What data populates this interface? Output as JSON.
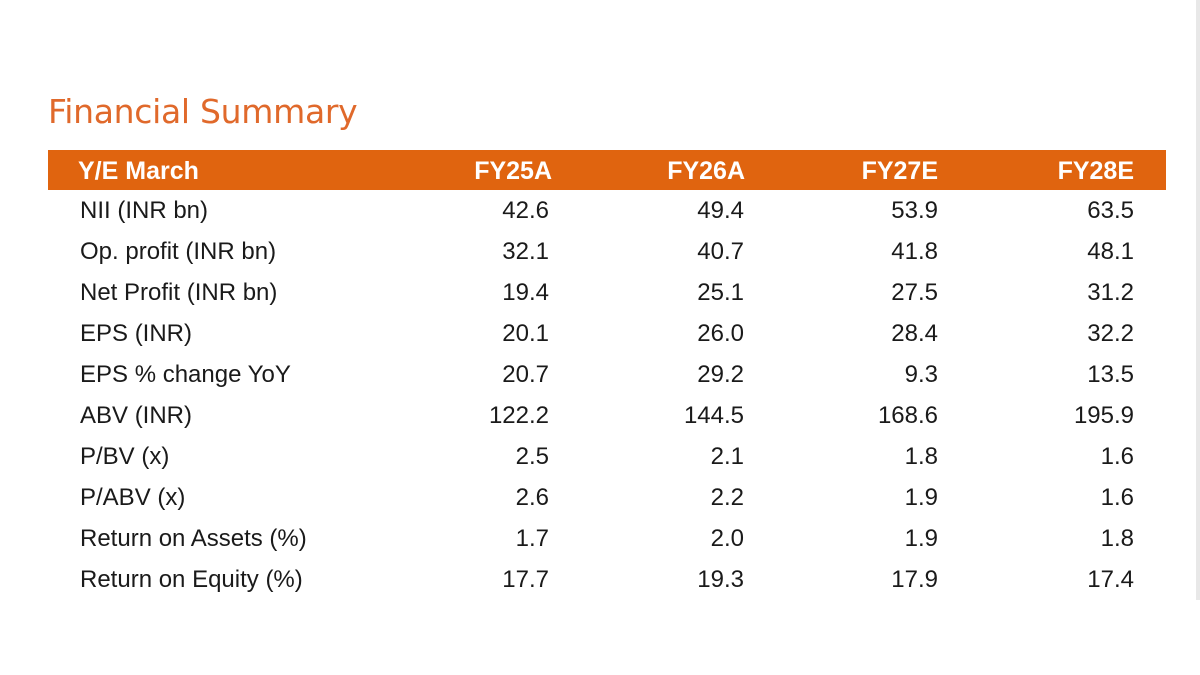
{
  "title": "Financial Summary",
  "columns": [
    "Y/E  March",
    "FY25A",
    "FY26A",
    "FY27E",
    "FY28E"
  ],
  "rows": [
    {
      "label": "NII (INR bn)",
      "values": [
        "42.6",
        "49.4",
        "53.9",
        "63.5"
      ]
    },
    {
      "label": "Op. profit (INR bn)",
      "values": [
        "32.1",
        "40.7",
        "41.8",
        "48.1"
      ]
    },
    {
      "label": "Net Profit (INR bn)",
      "values": [
        "19.4",
        "25.1",
        "27.5",
        "31.2"
      ]
    },
    {
      "label": "EPS (INR)",
      "values": [
        "20.1",
        "26.0",
        "28.4",
        "32.2"
      ]
    },
    {
      "label": "EPS % change YoY",
      "values": [
        "20.7",
        "29.2",
        "9.3",
        "13.5"
      ]
    },
    {
      "label": "ABV (INR)",
      "values": [
        "122.2",
        "144.5",
        "168.6",
        "195.9"
      ]
    },
    {
      "label": "P/BV (x)",
      "values": [
        "2.5",
        "2.1",
        "1.8",
        "1.6"
      ]
    },
    {
      "label": "P/ABV (x)",
      "values": [
        "2.6",
        "2.2",
        "1.9",
        "1.6"
      ]
    },
    {
      "label": "Return on Assets (%)",
      "values": [
        "1.7",
        "2.0",
        "1.9",
        "1.8"
      ]
    },
    {
      "label": "Return on Equity  (%)",
      "values": [
        "17.7",
        "19.3",
        "17.9",
        "17.4"
      ]
    }
  ],
  "colors": {
    "title": "#e0692b",
    "header_background": "#e0640f",
    "header_text": "#ffffff",
    "body_text": "#1a1a1a"
  }
}
